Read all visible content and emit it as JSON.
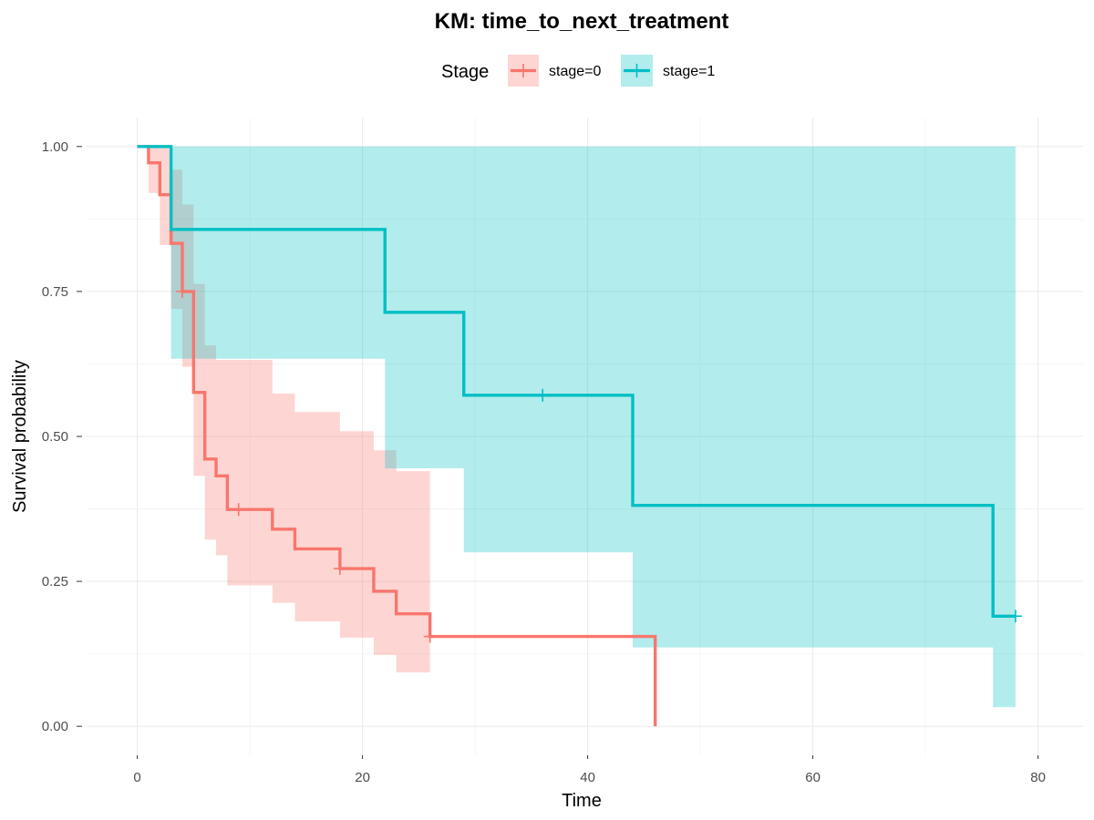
{
  "chart_data": {
    "type": "line",
    "title": "KM: time_to_next_treatment",
    "xlabel": "Time",
    "ylabel": "Survival probability",
    "xlim": [
      -4.5,
      84
    ],
    "ylim": [
      -0.05,
      1.05
    ],
    "x_ticks": [
      0,
      20,
      40,
      60,
      80
    ],
    "x_tick_labels": [
      "0",
      "20",
      "40",
      "60",
      "80"
    ],
    "y_ticks": [
      0,
      0.25,
      0.5,
      0.75,
      1.0
    ],
    "y_tick_labels": [
      "0.00",
      "0.25",
      "0.50",
      "0.75",
      "1.00"
    ],
    "grid": true,
    "legend": {
      "title": "Stage",
      "position": "top"
    },
    "series": [
      {
        "name": "stage=0",
        "color": "#F8766D",
        "step_x": [
          0,
          1,
          2,
          3,
          4,
          5,
          6,
          7,
          8,
          12,
          14,
          18,
          21,
          23,
          26,
          46
        ],
        "step_y": [
          1.0,
          0.972,
          0.917,
          0.833,
          0.75,
          0.576,
          0.461,
          0.432,
          0.374,
          0.34,
          0.306,
          0.272,
          0.233,
          0.194,
          0.155,
          0.0
        ],
        "end_x": 46,
        "upper": [
          1.0,
          1.0,
          1.0,
          0.96,
          0.9,
          0.763,
          0.657,
          0.632,
          0.632,
          0.574,
          0.542,
          0.509,
          0.476,
          0.44,
          0.404,
          0.404
        ],
        "lower": [
          1.0,
          0.92,
          0.83,
          0.72,
          0.62,
          0.432,
          0.322,
          0.295,
          0.243,
          0.213,
          0.181,
          0.153,
          0.123,
          0.093,
          0.093,
          0.093
        ],
        "band_end_x": 26,
        "censored": [
          {
            "x": 4,
            "y": 0.75
          },
          {
            "x": 9,
            "y": 0.374
          },
          {
            "x": 18,
            "y": 0.272
          },
          {
            "x": 26,
            "y": 0.155
          }
        ]
      },
      {
        "name": "stage=1",
        "color": "#00BFC4",
        "step_x": [
          0,
          3,
          22,
          29,
          44,
          76
        ],
        "step_y": [
          1.0,
          0.857,
          0.714,
          0.571,
          0.381,
          0.19
        ],
        "end_x": 78,
        "upper": [
          1.0,
          1.0,
          1.0,
          1.0,
          1.0,
          1.0
        ],
        "lower": [
          1.0,
          0.634,
          0.445,
          0.3,
          0.136,
          0.033
        ],
        "band_end_x": 78,
        "censored": [
          {
            "x": 36,
            "y": 0.571
          },
          {
            "x": 78,
            "y": 0.19
          }
        ]
      }
    ]
  }
}
